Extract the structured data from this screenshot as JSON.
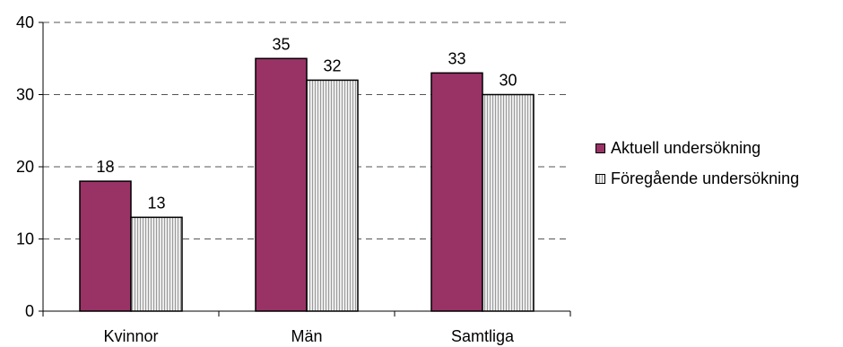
{
  "chart_data": {
    "type": "bar",
    "categories": [
      "Kvinnor",
      "Män",
      "Samtliga"
    ],
    "series": [
      {
        "name": "Aktuell undersökning",
        "values": [
          18,
          35,
          33
        ],
        "color": "#993366"
      },
      {
        "name": "Föregående undersökning",
        "values": [
          13,
          32,
          30
        ],
        "color": "#d4d4d4"
      }
    ],
    "ylim": [
      0,
      40
    ],
    "yticks": [
      "0",
      "10",
      "20",
      "30",
      "40"
    ],
    "grid": true,
    "legend_position": "right"
  }
}
